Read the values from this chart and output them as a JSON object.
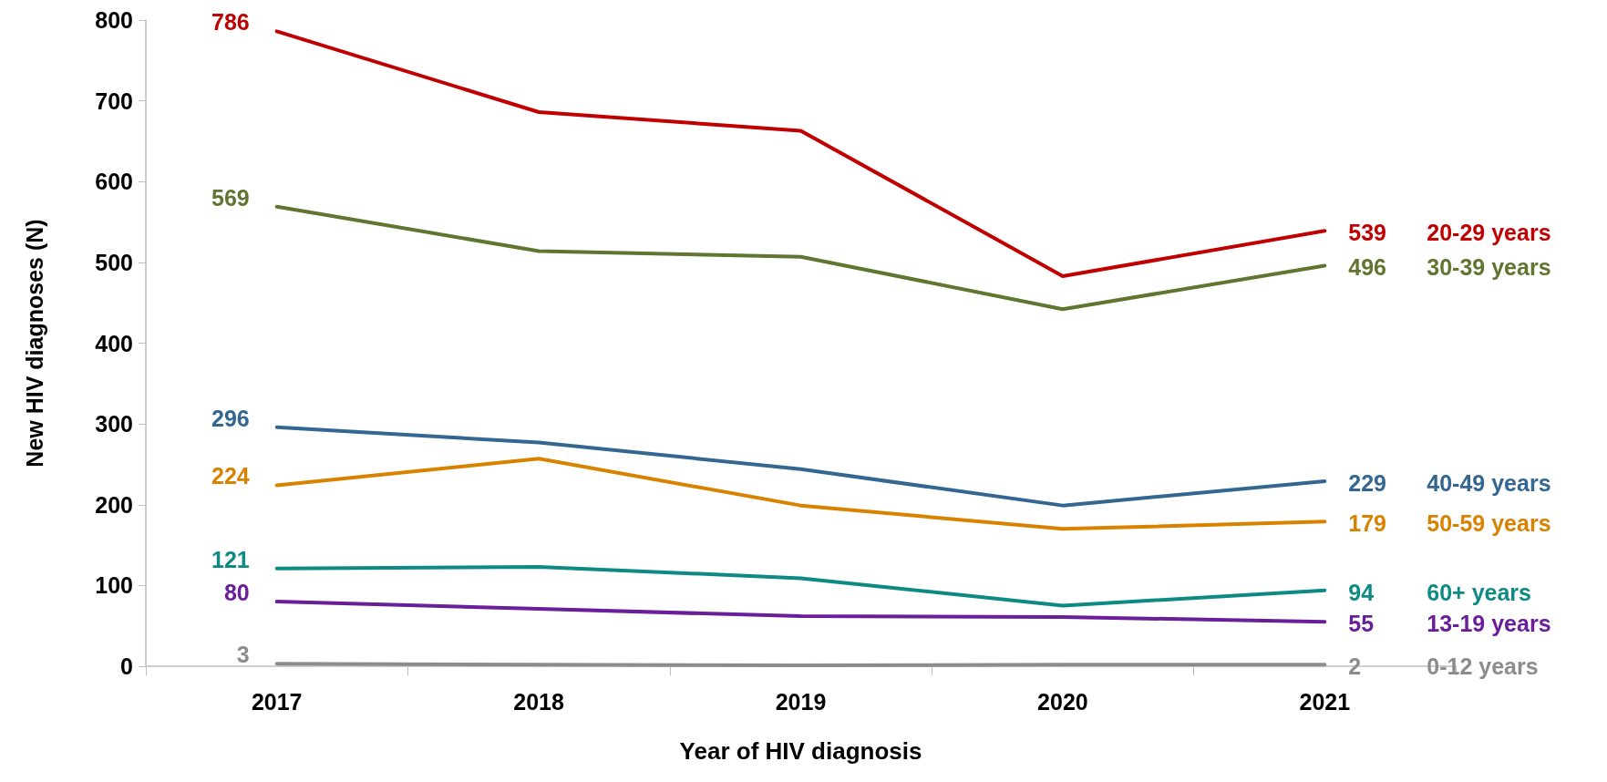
{
  "chart_data": {
    "type": "line",
    "xlabel": "Year of HIV diagnosis",
    "ylabel": "New HIV diagnoses (N)",
    "categories": [
      "2017",
      "2018",
      "2019",
      "2020",
      "2021"
    ],
    "ylim": [
      0,
      800
    ],
    "yticks": [
      0,
      100,
      200,
      300,
      400,
      500,
      600,
      700,
      800
    ],
    "grid": false,
    "legend": false,
    "marker": "none",
    "line_style": "solid",
    "series": [
      {
        "name": "20-29 years",
        "color": "#c00000",
        "values": [
          786,
          686,
          663,
          483,
          539
        ],
        "value_labels": [
          "786",
          null,
          null,
          null,
          "539"
        ]
      },
      {
        "name": "30-39 years",
        "color": "#5f7530",
        "values": [
          569,
          514,
          507,
          442,
          496
        ],
        "value_labels": [
          "569",
          null,
          null,
          null,
          "496"
        ]
      },
      {
        "name": "40-49 years",
        "color": "#336690",
        "values": [
          296,
          277,
          244,
          199,
          229
        ],
        "value_labels": [
          "296",
          null,
          null,
          null,
          "229"
        ]
      },
      {
        "name": "50-59 years",
        "color": "#d98200",
        "values": [
          224,
          257,
          199,
          170,
          179
        ],
        "value_labels": [
          "224",
          null,
          null,
          null,
          "179"
        ]
      },
      {
        "name": "60+ years",
        "color": "#0e8a84",
        "values": [
          121,
          123,
          109,
          75,
          94
        ],
        "value_labels": [
          "121",
          null,
          null,
          null,
          "94"
        ]
      },
      {
        "name": "13-19 years",
        "color": "#6a1e9a",
        "values": [
          80,
          71,
          62,
          61,
          55
        ],
        "value_labels": [
          "80",
          null,
          null,
          null,
          "55"
        ]
      },
      {
        "name": "0-12 years",
        "color": "#8c8c8c",
        "values": [
          3,
          2,
          1,
          2,
          2
        ],
        "value_labels": [
          "3",
          null,
          null,
          null,
          "2"
        ]
      }
    ]
  }
}
